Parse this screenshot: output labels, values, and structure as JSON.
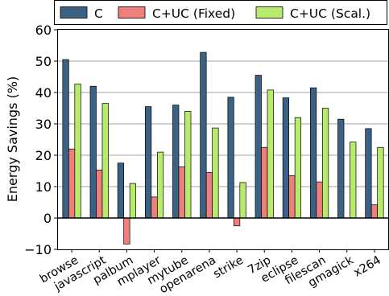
{
  "chart_data": {
    "type": "bar",
    "title": "",
    "xlabel": "",
    "ylabel": "Energy Savings (%)",
    "ylim": [
      -10,
      60
    ],
    "yticks": [
      -10,
      0,
      10,
      20,
      30,
      40,
      50,
      60
    ],
    "ytick_labels": [
      "−10",
      "0",
      "10",
      "20",
      "30",
      "40",
      "50",
      "60"
    ],
    "grid": "horizontal",
    "legend_position": "top",
    "categories": [
      "browse",
      "javascript",
      "palbum",
      "mplayer",
      "mytube",
      "openarena",
      "strike",
      "7zip",
      "eclipse",
      "filescan",
      "gmagick",
      "x264"
    ],
    "series": [
      {
        "name": "C",
        "color": "#3b6284",
        "values": [
          50.5,
          42,
          17.5,
          35.5,
          36,
          52.8,
          38.5,
          45.5,
          38.3,
          41.5,
          31.5,
          28.5
        ]
      },
      {
        "name": "C+UC (Fixed)",
        "color": "#ef7f7d",
        "values": [
          22,
          15.3,
          -8.3,
          6.7,
          16.3,
          14.5,
          -2.5,
          22.5,
          13.5,
          11.5,
          0,
          4.2
        ]
      },
      {
        "name": "C+UC (Scal.)",
        "color": "#b8ea6b",
        "values": [
          42.7,
          36.5,
          11,
          21,
          34,
          28.7,
          11.3,
          40.8,
          32,
          35,
          24.2,
          22.5
        ]
      }
    ]
  }
}
